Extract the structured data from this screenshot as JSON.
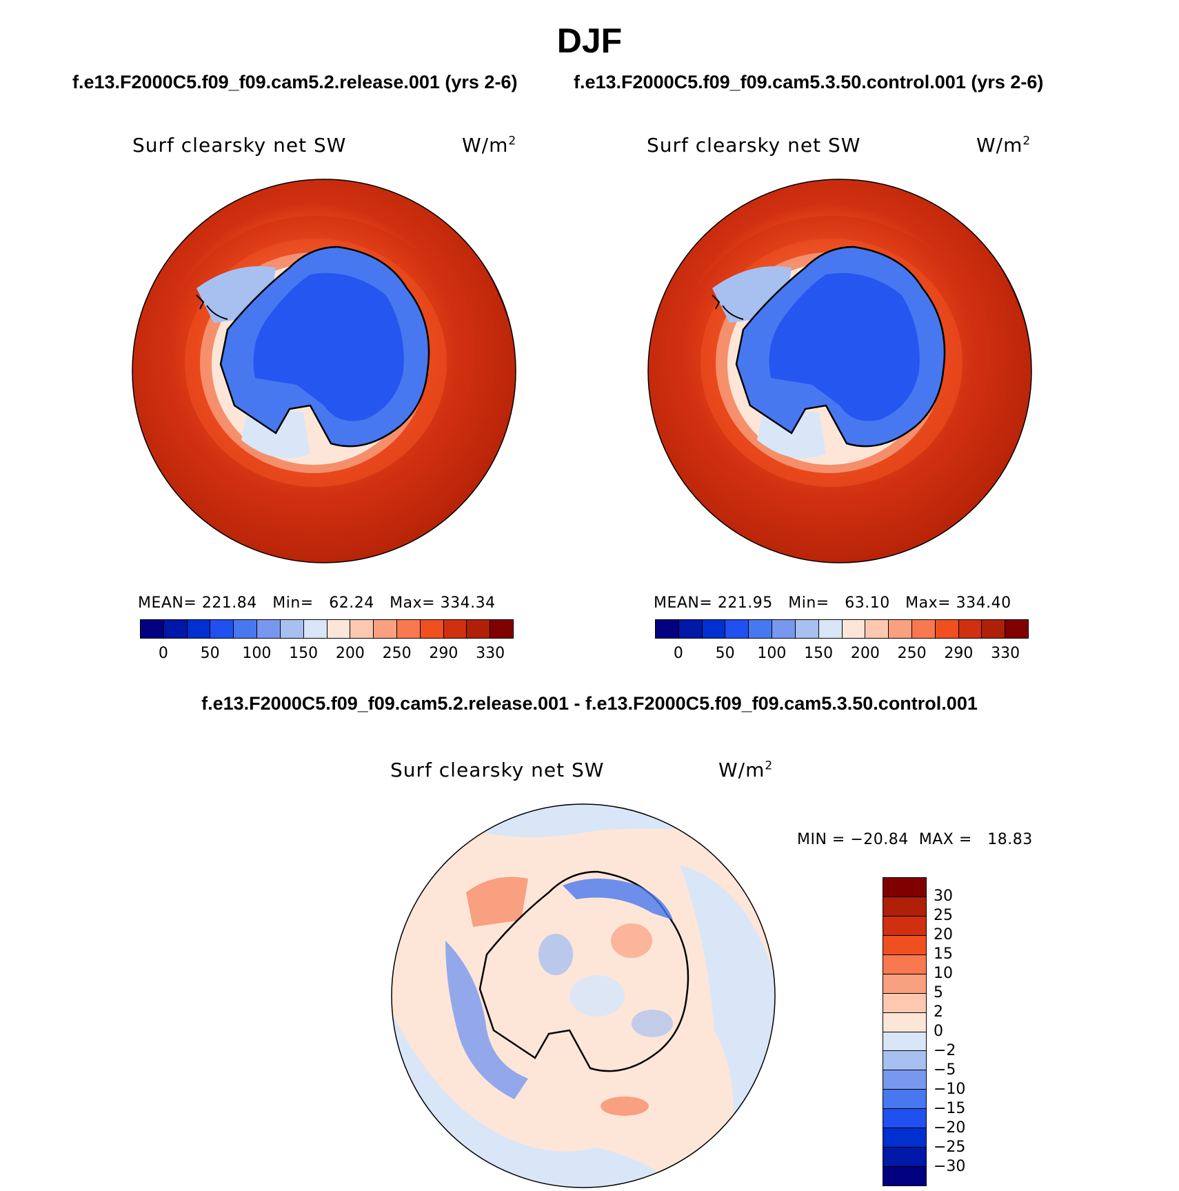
{
  "figure": {
    "season": "DJF",
    "case1_title": "f.e13.F2000C5.f09_f09.cam5.2.release.001 (yrs 2-6)",
    "case2_title": "f.e13.F2000C5.f09_f09.cam5.3.50.control.001 (yrs 2-6)",
    "diff_title": "f.e13.F2000C5.f09_f09.cam5.2.release.001 - f.e13.F2000C5.f09_f09.cam5.3.50.control.001"
  },
  "panels": {
    "case1": {
      "variable": "Surf clearsky net SW",
      "units": "W/m",
      "units_sup": "2",
      "stats": "MEAN= 221.84   Min=   62.24   Max= 334.34"
    },
    "case2": {
      "variable": "Surf clearsky net SW",
      "units": "W/m",
      "units_sup": "2",
      "stats": "MEAN= 221.95   Min=   63.10   Max= 334.40"
    },
    "diff": {
      "variable": "Surf clearsky net SW",
      "units": "W/m",
      "units_sup": "2",
      "stats": "MIN = −20.84  MAX =   18.83"
    }
  },
  "colorbar_abs": {
    "colors": [
      "#000080",
      "#0018a8",
      "#0030d0",
      "#2050f0",
      "#4878f0",
      "#7898f0",
      "#a8c0f0",
      "#d8e6f8",
      "#fde6d8",
      "#fcc8b0",
      "#f8a080",
      "#f87850",
      "#f05020",
      "#d03010",
      "#b02008",
      "#800000"
    ],
    "labels": [
      "0",
      "50",
      "100",
      "150",
      "200",
      "250",
      "290",
      "330"
    ]
  },
  "colorbar_diff": {
    "colors": [
      "#000080",
      "#0018a8",
      "#0030d0",
      "#2050f0",
      "#4878f0",
      "#7898f0",
      "#a8c0f0",
      "#d8e6f8",
      "#fde6d8",
      "#fcc8b0",
      "#f8a080",
      "#f87850",
      "#f05020",
      "#d03010",
      "#b02008",
      "#800000"
    ],
    "labels": [
      "30",
      "25",
      "20",
      "15",
      "10",
      "5",
      "2",
      "0",
      "−2",
      "−5",
      "−10",
      "−15",
      "−20",
      "−25",
      "−30"
    ]
  }
}
